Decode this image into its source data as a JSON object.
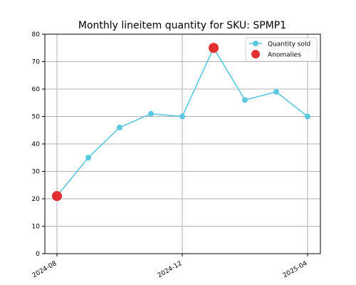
{
  "chart_data": {
    "type": "line",
    "title": "Monthly lineitem quantity for SKU: SPMP1",
    "xlabel": "",
    "ylabel": "",
    "x": [
      "2024-08",
      "2024-09",
      "2024-10",
      "2024-11",
      "2024-12",
      "2025-01",
      "2025-02",
      "2025-03",
      "2025-04"
    ],
    "series": [
      {
        "name": "Quantity sold",
        "values": [
          21,
          35,
          46,
          51,
          50,
          75,
          56,
          59,
          50
        ],
        "color": "#5bc8e0"
      },
      {
        "name": "Anomalies",
        "points": [
          {
            "x": "2024-08",
            "y": 21
          },
          {
            "x": "2025-01",
            "y": 75
          }
        ],
        "color": "#e03030"
      }
    ],
    "ylim": [
      0,
      80
    ],
    "yticks": [
      0,
      10,
      20,
      30,
      40,
      50,
      60,
      70,
      80
    ],
    "xticks": [
      "2024-08",
      "2024-12",
      "2025-04"
    ],
    "grid": true,
    "legend_position": "top-right"
  }
}
